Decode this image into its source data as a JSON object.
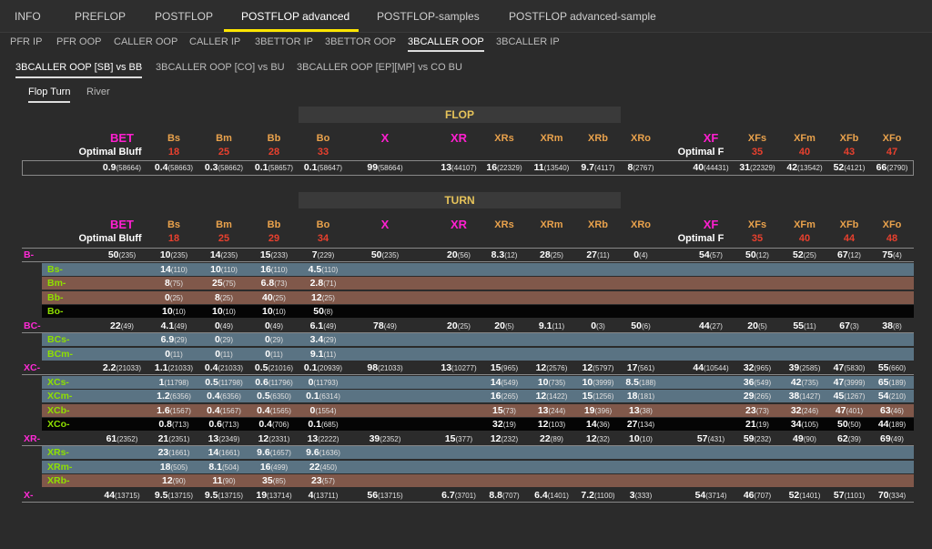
{
  "tabs1": [
    "INFO",
    "PREFLOP",
    "POSTFLOP",
    "POSTFLOP advanced",
    "POSTFLOP-samples",
    "POSTFLOP advanced-sample"
  ],
  "tabs2": [
    "PFR IP",
    "PFR OOP",
    "CALLER OOP",
    "CALLER IP",
    "3BETTOR IP",
    "3BETTOR OOP",
    "3BCALLER OOP",
    "3BCALLER IP"
  ],
  "tabs3": [
    "3BCALLER OOP [SB] vs BB",
    "3BCALLER OOP [CO] vs BU",
    "3BCALLER OOP [EP][MP] vs CO  BU"
  ],
  "tabs4": [
    "Flop Turn",
    "River"
  ],
  "flop": {
    "title": "FLOP",
    "headers": [
      "BET",
      "Bs",
      "Bm",
      "Bb",
      "Bo",
      "X",
      "XR",
      "XRs",
      "XRm",
      "XRb",
      "XRo",
      "XF",
      "XFs",
      "XFm",
      "XFb",
      "XFo"
    ],
    "optimal_bluff": "Optimal Bluff",
    "optimal_f": "Optimal F",
    "bluff_values": [
      "18",
      "25",
      "28",
      "33"
    ],
    "f_values": [
      "35",
      "40",
      "43",
      "47"
    ],
    "row": [
      [
        "0.9",
        "58664"
      ],
      [
        "0.4",
        "58663"
      ],
      [
        "0.3",
        "58662"
      ],
      [
        "0.1",
        "58657"
      ],
      [
        "0.1",
        "58647"
      ],
      [
        "99",
        "58664"
      ],
      [
        "13",
        "44107"
      ],
      [
        "16",
        "22329"
      ],
      [
        "11",
        "13540"
      ],
      [
        "9.7",
        "4117"
      ],
      [
        "8",
        "2767"
      ],
      [
        "40",
        "44431"
      ],
      [
        "31",
        "22329"
      ],
      [
        "42",
        "13542"
      ],
      [
        "52",
        "4121"
      ],
      [
        "66",
        "2790"
      ]
    ]
  },
  "turn": {
    "title": "TURN",
    "headers": [
      "BET",
      "Bs",
      "Bm",
      "Bb",
      "Bo",
      "X",
      "XR",
      "XRs",
      "XRm",
      "XRb",
      "XRo",
      "XF",
      "XFs",
      "XFm",
      "XFb",
      "XFo"
    ],
    "optimal_bluff": "Optimal Bluff",
    "optimal_f": "Optimal F",
    "bluff_values": [
      "18",
      "25",
      "29",
      "34"
    ],
    "f_values": [
      "35",
      "40",
      "44",
      "48"
    ],
    "rows": [
      {
        "label": "B-",
        "color": "pink",
        "bg": "dark",
        "cells": [
          [
            "50",
            "235"
          ],
          [
            "10",
            "235"
          ],
          [
            "14",
            "235"
          ],
          [
            "15",
            "233"
          ],
          [
            "7",
            "229"
          ],
          [
            "50",
            "235"
          ],
          [
            "20",
            "56"
          ],
          [
            "8.3",
            "12"
          ],
          [
            "28",
            "25"
          ],
          [
            "27",
            "11"
          ],
          [
            "0",
            "4"
          ],
          [
            "54",
            "57"
          ],
          [
            "50",
            "12"
          ],
          [
            "52",
            "25"
          ],
          [
            "67",
            "12"
          ],
          [
            "75",
            "4"
          ]
        ]
      },
      {
        "label": "Bs-",
        "color": "green",
        "bg": "blue",
        "cells": [
          null,
          [
            "14",
            "110"
          ],
          [
            "10",
            "110"
          ],
          [
            "16",
            "110"
          ],
          [
            "4.5",
            "110"
          ],
          null,
          null,
          null,
          null,
          null,
          null,
          null,
          null,
          null,
          null,
          null
        ]
      },
      {
        "label": "Bm-",
        "color": "green",
        "bg": "brown",
        "cells": [
          null,
          [
            "8",
            "75"
          ],
          [
            "25",
            "75"
          ],
          [
            "6.8",
            "73"
          ],
          [
            "2.8",
            "71"
          ],
          null,
          null,
          null,
          null,
          null,
          null,
          null,
          null,
          null,
          null,
          null
        ]
      },
      {
        "label": "Bb-",
        "color": "green",
        "bg": "brown",
        "cells": [
          null,
          [
            "0",
            "25"
          ],
          [
            "8",
            "25"
          ],
          [
            "40",
            "25"
          ],
          [
            "12",
            "25"
          ],
          null,
          null,
          null,
          null,
          null,
          null,
          null,
          null,
          null,
          null,
          null
        ]
      },
      {
        "label": "Bo-",
        "color": "green",
        "bg": "black",
        "cells": [
          null,
          [
            "10",
            "10"
          ],
          [
            "10",
            "10"
          ],
          [
            "10",
            "10"
          ],
          [
            "50",
            "8"
          ],
          null,
          null,
          null,
          null,
          null,
          null,
          null,
          null,
          null,
          null,
          null
        ]
      },
      {
        "label": "BC-",
        "color": "pink",
        "bg": "dark",
        "cells": [
          [
            "22",
            "49"
          ],
          [
            "4.1",
            "49"
          ],
          [
            "0",
            "49"
          ],
          [
            "0",
            "49"
          ],
          [
            "6.1",
            "49"
          ],
          [
            "78",
            "49"
          ],
          [
            "20",
            "25"
          ],
          [
            "20",
            "5"
          ],
          [
            "9.1",
            "11"
          ],
          [
            "0",
            "3"
          ],
          [
            "50",
            "6"
          ],
          [
            "44",
            "27"
          ],
          [
            "20",
            "5"
          ],
          [
            "55",
            "11"
          ],
          [
            "67",
            "3"
          ],
          [
            "38",
            "8"
          ]
        ]
      },
      {
        "label": "BCs-",
        "color": "green",
        "bg": "blue",
        "cells": [
          null,
          [
            "6.9",
            "29"
          ],
          [
            "0",
            "29"
          ],
          [
            "0",
            "29"
          ],
          [
            "3.4",
            "29"
          ],
          null,
          null,
          null,
          null,
          null,
          null,
          null,
          null,
          null,
          null,
          null
        ]
      },
      {
        "label": "BCm-",
        "color": "green",
        "bg": "blue",
        "cells": [
          null,
          [
            "0",
            "11"
          ],
          [
            "0",
            "11"
          ],
          [
            "0",
            "11"
          ],
          [
            "9.1",
            "11"
          ],
          null,
          null,
          null,
          null,
          null,
          null,
          null,
          null,
          null,
          null,
          null
        ]
      },
      {
        "label": "XC-",
        "color": "pink",
        "bg": "dark",
        "cells": [
          [
            "2.2",
            "21033"
          ],
          [
            "1.1",
            "21033"
          ],
          [
            "0.4",
            "21033"
          ],
          [
            "0.5",
            "21016"
          ],
          [
            "0.1",
            "20939"
          ],
          [
            "98",
            "21033"
          ],
          [
            "13",
            "10277"
          ],
          [
            "15",
            "965"
          ],
          [
            "12",
            "2576"
          ],
          [
            "12",
            "5797"
          ],
          [
            "17",
            "561"
          ],
          [
            "44",
            "10544"
          ],
          [
            "32",
            "965"
          ],
          [
            "39",
            "2585"
          ],
          [
            "47",
            "5830"
          ],
          [
            "55",
            "660"
          ]
        ]
      },
      {
        "label": "XCs-",
        "color": "green",
        "bg": "blue",
        "cells": [
          null,
          [
            "1",
            "11798"
          ],
          [
            "0.5",
            "11798"
          ],
          [
            "0.6",
            "11796"
          ],
          [
            "0",
            "11793"
          ],
          null,
          null,
          [
            "14",
            "549"
          ],
          [
            "10",
            "735"
          ],
          [
            "10",
            "3999"
          ],
          [
            "8.5",
            "188"
          ],
          null,
          [
            "36",
            "549"
          ],
          [
            "42",
            "735"
          ],
          [
            "47",
            "3999"
          ],
          [
            "65",
            "189"
          ]
        ]
      },
      {
        "label": "XCm-",
        "color": "green",
        "bg": "blue",
        "cells": [
          null,
          [
            "1.2",
            "6356"
          ],
          [
            "0.4",
            "6356"
          ],
          [
            "0.5",
            "6350"
          ],
          [
            "0.1",
            "6314"
          ],
          null,
          null,
          [
            "16",
            "265"
          ],
          [
            "12",
            "1422"
          ],
          [
            "15",
            "1256"
          ],
          [
            "18",
            "181"
          ],
          null,
          [
            "29",
            "265"
          ],
          [
            "38",
            "1427"
          ],
          [
            "45",
            "1267"
          ],
          [
            "54",
            "210"
          ]
        ]
      },
      {
        "label": "XCb-",
        "color": "green",
        "bg": "brown",
        "cells": [
          null,
          [
            "1.6",
            "1567"
          ],
          [
            "0.4",
            "1567"
          ],
          [
            "0.4",
            "1565"
          ],
          [
            "0",
            "1554"
          ],
          null,
          null,
          [
            "15",
            "73"
          ],
          [
            "13",
            "244"
          ],
          [
            "19",
            "396"
          ],
          [
            "13",
            "38"
          ],
          null,
          [
            "23",
            "73"
          ],
          [
            "32",
            "246"
          ],
          [
            "47",
            "401"
          ],
          [
            "63",
            "46"
          ]
        ]
      },
      {
        "label": "XCo-",
        "color": "green",
        "bg": "black",
        "cells": [
          null,
          [
            "0.8",
            "713"
          ],
          [
            "0.6",
            "713"
          ],
          [
            "0.4",
            "706"
          ],
          [
            "0.1",
            "685"
          ],
          null,
          null,
          [
            "32",
            "19"
          ],
          [
            "12",
            "103"
          ],
          [
            "14",
            "36"
          ],
          [
            "27",
            "134"
          ],
          null,
          [
            "21",
            "19"
          ],
          [
            "34",
            "105"
          ],
          [
            "50",
            "50"
          ],
          [
            "44",
            "189"
          ]
        ]
      },
      {
        "label": "XR-",
        "color": "pink",
        "bg": "dark",
        "cells": [
          [
            "61",
            "2352"
          ],
          [
            "21",
            "2351"
          ],
          [
            "13",
            "2349"
          ],
          [
            "12",
            "2331"
          ],
          [
            "13",
            "2222"
          ],
          [
            "39",
            "2352"
          ],
          [
            "15",
            "377"
          ],
          [
            "12",
            "232"
          ],
          [
            "22",
            "89"
          ],
          [
            "12",
            "32"
          ],
          [
            "10",
            "10"
          ],
          [
            "57",
            "431"
          ],
          [
            "59",
            "232"
          ],
          [
            "49",
            "90"
          ],
          [
            "62",
            "39"
          ],
          [
            "69",
            "49"
          ]
        ]
      },
      {
        "label": "XRs-",
        "color": "green",
        "bg": "blue",
        "cells": [
          null,
          [
            "23",
            "1661"
          ],
          [
            "14",
            "1661"
          ],
          [
            "9.6",
            "1657"
          ],
          [
            "9.6",
            "1636"
          ],
          null,
          null,
          null,
          null,
          null,
          null,
          null,
          null,
          null,
          null,
          null
        ]
      },
      {
        "label": "XRm-",
        "color": "green",
        "bg": "blue",
        "cells": [
          null,
          [
            "18",
            "505"
          ],
          [
            "8.1",
            "504"
          ],
          [
            "16",
            "499"
          ],
          [
            "22",
            "450"
          ],
          null,
          null,
          null,
          null,
          null,
          null,
          null,
          null,
          null,
          null,
          null
        ]
      },
      {
        "label": "XRb-",
        "color": "green",
        "bg": "brown",
        "cells": [
          null,
          [
            "12",
            "90"
          ],
          [
            "11",
            "90"
          ],
          [
            "35",
            "85"
          ],
          [
            "23",
            "57"
          ],
          null,
          null,
          null,
          null,
          null,
          null,
          null,
          null,
          null,
          null,
          null
        ]
      },
      {
        "label": "X-",
        "color": "pink",
        "bg": "dark",
        "cells": [
          [
            "44",
            "13715"
          ],
          [
            "9.5",
            "13715"
          ],
          [
            "9.5",
            "13715"
          ],
          [
            "19",
            "13714"
          ],
          [
            "4",
            "13711"
          ],
          [
            "56",
            "13715"
          ],
          [
            "6.7",
            "3701"
          ],
          [
            "8.8",
            "707"
          ],
          [
            "6.4",
            "1401"
          ],
          [
            "7.2",
            "1100"
          ],
          [
            "3",
            "333"
          ],
          [
            "54",
            "3714"
          ],
          [
            "46",
            "707"
          ],
          [
            "52",
            "1401"
          ],
          [
            "57",
            "1101"
          ],
          [
            "70",
            "334"
          ]
        ]
      }
    ]
  }
}
